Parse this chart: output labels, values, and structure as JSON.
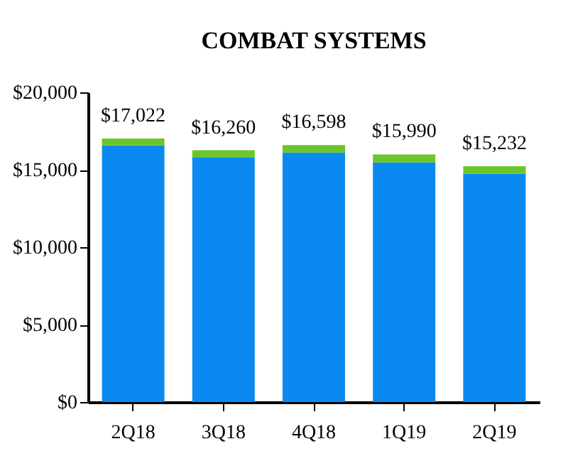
{
  "chart_data": {
    "type": "bar",
    "title": "COMBAT SYSTEMS",
    "stacked": true,
    "categories": [
      "2Q18",
      "3Q18",
      "4Q18",
      "1Q19",
      "2Q19"
    ],
    "series": [
      {
        "color": "#0a8af0",
        "values": [
          16572,
          15780,
          16118,
          15470,
          14752
        ]
      },
      {
        "color": "#6cc62a",
        "values": [
          450,
          480,
          480,
          520,
          480
        ]
      }
    ],
    "totals": [
      "$17,022",
      "$16,260",
      "$16,598",
      "$15,990",
      "$15,232"
    ],
    "ylim": [
      0,
      20000
    ],
    "yticks": [
      {
        "value": 0,
        "label": "$0"
      },
      {
        "value": 5000,
        "label": "$5,000"
      },
      {
        "value": 10000,
        "label": "$10,000"
      },
      {
        "value": 15000,
        "label": "$15,000"
      },
      {
        "value": 20000,
        "label": "$20,000"
      }
    ],
    "grid": false,
    "legend": false
  }
}
